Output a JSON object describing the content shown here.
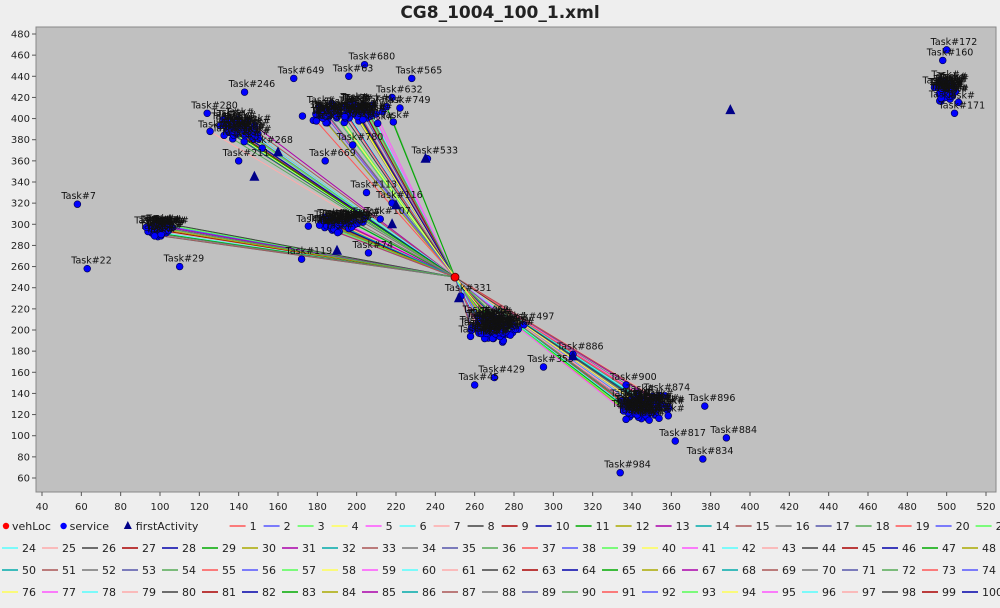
{
  "chart_data": {
    "type": "scatter",
    "title": "CG8_1004_100_1.xml",
    "xlabel": "",
    "ylabel": "",
    "xlim": [
      40,
      520
    ],
    "ylim": [
      60,
      480
    ],
    "x_ticks": [
      40,
      60,
      80,
      100,
      120,
      140,
      160,
      180,
      200,
      220,
      240,
      260,
      280,
      300,
      320,
      340,
      360,
      380,
      400,
      420,
      440,
      460,
      480,
      500,
      520
    ],
    "y_ticks": [
      60,
      80,
      100,
      120,
      140,
      160,
      180,
      200,
      220,
      240,
      260,
      280,
      300,
      320,
      340,
      360,
      380,
      400,
      420,
      440,
      460,
      480
    ],
    "grid": false,
    "background": "#c0c0c0",
    "legend_position": "bottom",
    "depot": {
      "x": 250,
      "y": 250
    },
    "clusters": [
      {
        "cx": 500,
        "cy": 425,
        "sx": 7,
        "sy": 10,
        "n": 50
      },
      {
        "cx": 195,
        "cy": 405,
        "sx": 22,
        "sy": 10,
        "n": 80
      },
      {
        "cx": 140,
        "cy": 390,
        "sx": 12,
        "sy": 12,
        "n": 50
      },
      {
        "cx": 190,
        "cy": 300,
        "sx": 12,
        "sy": 8,
        "n": 45
      },
      {
        "cx": 100,
        "cy": 295,
        "sx": 7,
        "sy": 7,
        "n": 40
      },
      {
        "cx": 270,
        "cy": 200,
        "sx": 12,
        "sy": 12,
        "n": 80
      },
      {
        "cx": 345,
        "cy": 125,
        "sx": 13,
        "sy": 13,
        "n": 80
      }
    ],
    "points": [
      {
        "label": "Task#172",
        "x": 500,
        "y": 465
      },
      {
        "label": "Task#160",
        "x": 498,
        "y": 455
      },
      {
        "label": "Task#171",
        "x": 504,
        "y": 405
      },
      {
        "label": "Task#680",
        "x": 204,
        "y": 451
      },
      {
        "label": "Task#649",
        "x": 168,
        "y": 438
      },
      {
        "label": "Task#63",
        "x": 196,
        "y": 440
      },
      {
        "label": "Task#565",
        "x": 228,
        "y": 438
      },
      {
        "label": "Task#246",
        "x": 143,
        "y": 425
      },
      {
        "label": "Task#749",
        "x": 222,
        "y": 410
      },
      {
        "label": "Task#632",
        "x": 218,
        "y": 420
      },
      {
        "label": "Task#280",
        "x": 124,
        "y": 405
      },
      {
        "label": "Task#268",
        "x": 152,
        "y": 372
      },
      {
        "label": "Task#211",
        "x": 140,
        "y": 360
      },
      {
        "label": "Task#669",
        "x": 184,
        "y": 360
      },
      {
        "label": "Task#780",
        "x": 198,
        "y": 375
      },
      {
        "label": "Task#533",
        "x": 236,
        "y": 362
      },
      {
        "label": "Task#113",
        "x": 205,
        "y": 330
      },
      {
        "label": "Task#116",
        "x": 218,
        "y": 320
      },
      {
        "label": "Task#107",
        "x": 212,
        "y": 305
      },
      {
        "label": "Task#7",
        "x": 58,
        "y": 319
      },
      {
        "label": "Task#22",
        "x": 63,
        "y": 258
      },
      {
        "label": "Task#29",
        "x": 110,
        "y": 260
      },
      {
        "label": "Task#119",
        "x": 172,
        "y": 267
      },
      {
        "label": "Task#74",
        "x": 206,
        "y": 273
      },
      {
        "label": "Task#331",
        "x": 253,
        "y": 232
      },
      {
        "label": "Task#462",
        "x": 262,
        "y": 212
      },
      {
        "label": "Task#497",
        "x": 285,
        "y": 205
      },
      {
        "label": "Task#886",
        "x": 310,
        "y": 177
      },
      {
        "label": "Task#429",
        "x": 270,
        "y": 155
      },
      {
        "label": "Task#45",
        "x": 260,
        "y": 148
      },
      {
        "label": "Task#355",
        "x": 295,
        "y": 165
      },
      {
        "label": "Task#900",
        "x": 337,
        "y": 148
      },
      {
        "label": "Task#874",
        "x": 354,
        "y": 138
      },
      {
        "label": "Task#896",
        "x": 377,
        "y": 128
      },
      {
        "label": "Task#884",
        "x": 388,
        "y": 98
      },
      {
        "label": "Task#834",
        "x": 376,
        "y": 78
      },
      {
        "label": "Task#817",
        "x": 362,
        "y": 95
      },
      {
        "label": "Task#984",
        "x": 334,
        "y": 65
      }
    ],
    "first_activities": [
      {
        "x": 148,
        "y": 345
      },
      {
        "x": 235,
        "y": 362
      },
      {
        "x": 190,
        "y": 275
      },
      {
        "x": 252,
        "y": 230
      },
      {
        "x": 310,
        "y": 175
      },
      {
        "x": 390,
        "y": 408
      },
      {
        "x": 220,
        "y": 318
      },
      {
        "x": 218,
        "y": 300
      },
      {
        "x": 160,
        "y": 368
      }
    ],
    "legend_rows": [
      [
        "vehLoc",
        "service",
        "firstActivity",
        "1",
        "2",
        "3",
        "4",
        "5",
        "6",
        "7",
        "8",
        "9",
        "10",
        "11",
        "12",
        "13",
        "14",
        "15",
        "16",
        "17",
        "18",
        "19",
        "20",
        "21",
        "22",
        "23"
      ],
      [
        "24",
        "25",
        "26",
        "27",
        "28",
        "29",
        "30",
        "31",
        "32",
        "33",
        "34",
        "35",
        "36",
        "37",
        "38",
        "39",
        "40",
        "41",
        "42",
        "43",
        "44",
        "45",
        "46",
        "47",
        "48",
        "49"
      ],
      [
        "50",
        "51",
        "52",
        "53",
        "54",
        "55",
        "56",
        "57",
        "58",
        "59",
        "60",
        "61",
        "62",
        "63",
        "64",
        "65",
        "66",
        "67",
        "68",
        "69",
        "70",
        "71",
        "72",
        "73",
        "74",
        "75"
      ],
      [
        "76",
        "77",
        "78",
        "79",
        "80",
        "81",
        "82",
        "83",
        "84",
        "85",
        "86",
        "87",
        "88",
        "89",
        "90",
        "91",
        "92",
        "93",
        "94",
        "95",
        "96",
        "97",
        "98",
        "99",
        "100"
      ]
    ],
    "series_colors": [
      "#ff5555",
      "#5555ff",
      "#55ff55",
      "#ffff55",
      "#ff55ff",
      "#55ffff",
      "#ffaaaa",
      "#404040",
      "#aa0000",
      "#0000aa",
      "#00aa00",
      "#aaaa00",
      "#aa00aa",
      "#00aaaa",
      "#aa5555",
      "#777777",
      "#5555aa",
      "#55aa55"
    ],
    "marker_colors": {
      "vehLoc": "#ff0000",
      "service": "#0000ff",
      "firstActivity": "#000088"
    }
  }
}
